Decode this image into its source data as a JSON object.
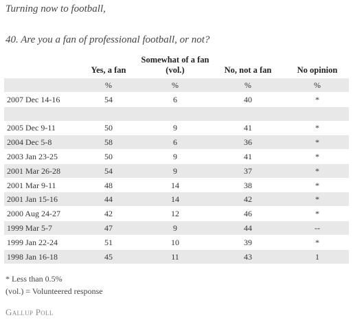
{
  "header": {
    "intro": "Turning now to football,",
    "question": "40. Are you a fan of professional football, or not?"
  },
  "table": {
    "columns": [
      "Yes, a fan",
      "Somewhat of a fan (vol.)",
      "No, not a fan",
      "No opinion"
    ],
    "units": [
      "%",
      "%",
      "%",
      "%"
    ],
    "rows": [
      [
        "2007 Dec 14-16",
        54,
        6,
        40,
        "*"
      ],
      [
        "2005 Dec 9-11",
        50,
        9,
        41,
        "*"
      ],
      [
        "2004 Dec 5-8",
        58,
        6,
        36,
        "*"
      ],
      [
        "2003 Jan 23-25",
        50,
        9,
        41,
        "*"
      ],
      [
        "2001 Mar 26-28",
        54,
        9,
        37,
        "*"
      ],
      [
        "2001 Mar 9-11",
        48,
        14,
        38,
        "*"
      ],
      [
        "2001 Jan 15-16",
        44,
        14,
        42,
        "*"
      ],
      [
        "2000 Aug 24-27",
        42,
        12,
        46,
        "*"
      ],
      [
        "1999 Mar 5-7",
        47,
        9,
        44,
        "--"
      ],
      [
        "1999 Jan 22-24",
        51,
        10,
        39,
        "*"
      ],
      [
        "1998 Jan 16-18",
        45,
        11,
        43,
        1
      ]
    ]
  },
  "footnotes": [
    "* Less than 0.5%",
    "(vol.) = Volunteered response"
  ],
  "source": "Gallup Poll"
}
